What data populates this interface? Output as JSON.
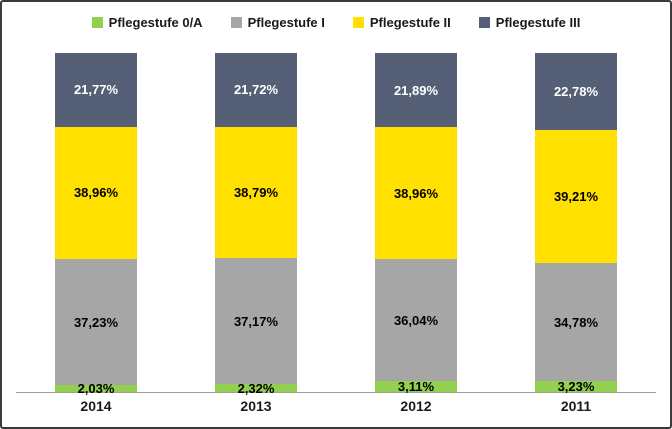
{
  "chart_data": {
    "type": "bar",
    "stacked": true,
    "unit": "%",
    "categories": [
      "2014",
      "2013",
      "2012",
      "2011"
    ],
    "series": [
      {
        "name": "Pflegestufe 0/A",
        "color": "#92D050",
        "label_color": "#000000",
        "values": [
          2.03,
          2.32,
          3.11,
          3.23
        ],
        "labels": [
          "2,03%",
          "2,32%",
          "3,11%",
          "3,23%"
        ]
      },
      {
        "name": "Pflegestufe I",
        "color": "#A6A6A6",
        "label_color": "#000000",
        "values": [
          37.23,
          37.17,
          36.04,
          34.78
        ],
        "labels": [
          "37,23%",
          "37,17%",
          "36,04%",
          "34,78%"
        ]
      },
      {
        "name": "Pflegestufe II",
        "color": "#FFE000",
        "label_color": "#000000",
        "values": [
          38.96,
          38.79,
          38.96,
          39.21
        ],
        "labels": [
          "38,96%",
          "38,79%",
          "38,96%",
          "39,21%"
        ]
      },
      {
        "name": "Pflegestufe III",
        "color": "#556077",
        "label_color": "#FFFFFF",
        "values": [
          21.77,
          21.72,
          21.89,
          22.78
        ],
        "labels": [
          "21,77%",
          "21,72%",
          "21,89%",
          "22,78%"
        ]
      }
    ],
    "ylim": [
      0,
      100
    ],
    "legend_position": "top",
    "grid": false,
    "axis_line_color": "#9E9E9E",
    "frame_border_color": "#3B3B3B"
  }
}
